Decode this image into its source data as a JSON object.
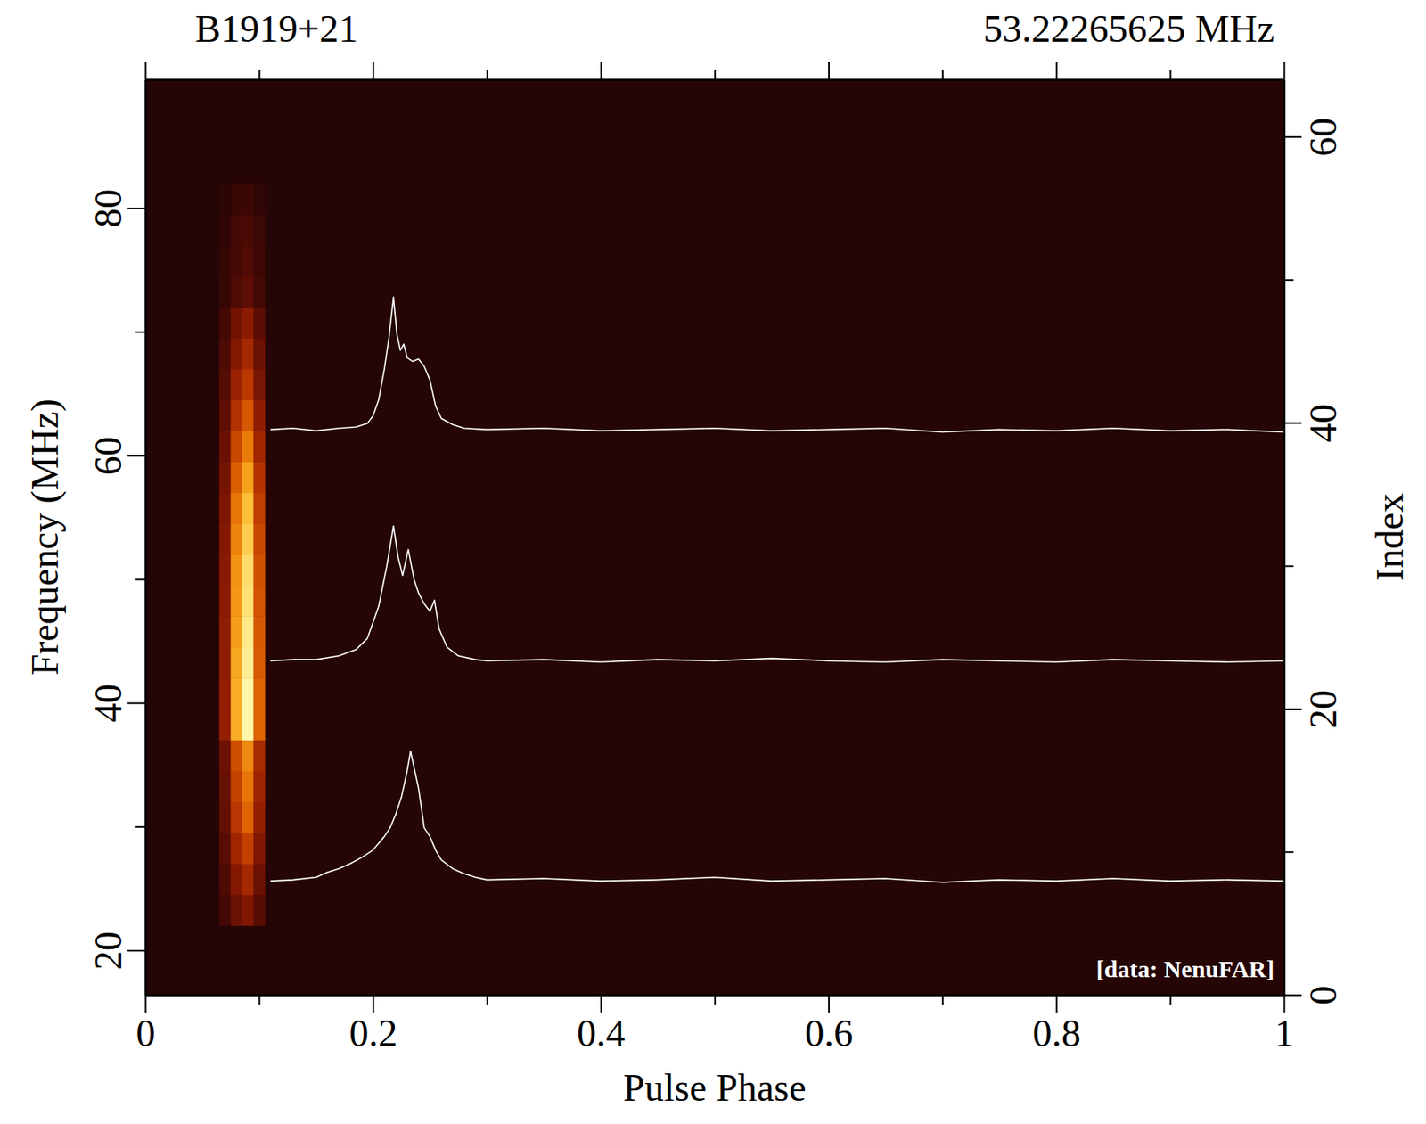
{
  "chart_data": {
    "type": "heatmap",
    "title": "B1919+21",
    "subtitle": "53.22265625 MHz",
    "x_label": "Pulse Phase",
    "y_label": "Frequency (MHz)",
    "y2_label": "Index",
    "annotation": "[data: NenuFAR]",
    "xlim": [
      0,
      1
    ],
    "xticks": [
      0,
      0.2,
      0.4,
      0.6,
      0.8,
      1
    ],
    "xticks_minor": [
      0.1,
      0.3,
      0.5,
      0.7,
      0.9
    ],
    "ylim": [
      16.4,
      90.4
    ],
    "yticks": [
      20,
      40,
      60,
      80
    ],
    "yticks_minor": [
      30,
      50,
      70
    ],
    "y2lim": [
      0,
      64
    ],
    "y2ticks": [
      0,
      20,
      40,
      60
    ],
    "y2ticks_minor": [
      10,
      30,
      50
    ],
    "cells": {
      "x_edges": [
        0.065,
        0.075,
        0.085,
        0.095,
        0.105
      ],
      "y_edges": [
        22,
        24.5,
        27,
        29.5,
        32,
        34.5,
        37,
        39.5,
        42,
        44.5,
        47,
        49.5,
        52,
        54.5,
        57,
        59.5,
        62,
        64.5,
        67,
        69.5,
        72,
        74.5,
        77,
        79.5,
        82
      ],
      "zlim": [
        0,
        1
      ],
      "values": [
        [
          0.08,
          0.19,
          0.25,
          0.14
        ],
        [
          0.11,
          0.26,
          0.35,
          0.19
        ],
        [
          0.14,
          0.34,
          0.45,
          0.25
        ],
        [
          0.17,
          0.41,
          0.55,
          0.3
        ],
        [
          0.18,
          0.45,
          0.6,
          0.33
        ],
        [
          0.2,
          0.49,
          0.65,
          0.36
        ],
        [
          0.3,
          0.75,
          1.0,
          0.55
        ],
        [
          0.3,
          0.75,
          1.0,
          0.55
        ],
        [
          0.29,
          0.73,
          0.97,
          0.53
        ],
        [
          0.29,
          0.71,
          0.95,
          0.52
        ],
        [
          0.28,
          0.69,
          0.92,
          0.51
        ],
        [
          0.27,
          0.68,
          0.9,
          0.5
        ],
        [
          0.26,
          0.64,
          0.85,
          0.47
        ],
        [
          0.24,
          0.6,
          0.8,
          0.44
        ],
        [
          0.22,
          0.54,
          0.72,
          0.4
        ],
        [
          0.19,
          0.47,
          0.62,
          0.34
        ],
        [
          0.16,
          0.39,
          0.52,
          0.29
        ],
        [
          0.13,
          0.32,
          0.42,
          0.23
        ],
        [
          0.11,
          0.26,
          0.35,
          0.19
        ],
        [
          0.08,
          0.21,
          0.28,
          0.15
        ],
        [
          0.05,
          0.11,
          0.15,
          0.08
        ],
        [
          0.04,
          0.09,
          0.12,
          0.07
        ],
        [
          0.03,
          0.08,
          0.1,
          0.06
        ],
        [
          0.02,
          0.05,
          0.06,
          0.03
        ]
      ]
    },
    "series": [
      {
        "type": "line",
        "color": "#ffffff",
        "x": [
          0.11,
          0.13,
          0.15,
          0.16,
          0.17,
          0.18,
          0.19,
          0.2,
          0.21,
          0.215,
          0.22,
          0.225,
          0.23,
          0.233,
          0.236,
          0.24,
          0.245,
          0.25,
          0.255,
          0.26,
          0.27,
          0.28,
          0.29,
          0.3,
          0.35,
          0.4,
          0.45,
          0.5,
          0.55,
          0.6,
          0.65,
          0.7,
          0.75,
          0.8,
          0.85,
          0.9,
          0.95,
          1.0
        ],
        "values": [
          25.6,
          25.7,
          25.9,
          26.3,
          26.6,
          27.0,
          27.5,
          28.1,
          29.2,
          29.9,
          31.0,
          32.4,
          34.5,
          36.1,
          34.8,
          33.1,
          29.9,
          29.2,
          28.1,
          27.3,
          26.6,
          26.2,
          25.9,
          25.7,
          25.8,
          25.6,
          25.7,
          25.9,
          25.6,
          25.7,
          25.8,
          25.5,
          25.7,
          25.6,
          25.8,
          25.6,
          25.7,
          25.6
        ]
      },
      {
        "type": "line",
        "color": "#ffffff",
        "x": [
          0.11,
          0.13,
          0.15,
          0.17,
          0.185,
          0.195,
          0.205,
          0.212,
          0.218,
          0.222,
          0.226,
          0.231,
          0.236,
          0.24,
          0.245,
          0.25,
          0.254,
          0.258,
          0.265,
          0.275,
          0.29,
          0.3,
          0.35,
          0.4,
          0.45,
          0.5,
          0.55,
          0.6,
          0.65,
          0.7,
          0.75,
          0.8,
          0.85,
          0.9,
          0.95,
          1.0
        ],
        "values": [
          43.4,
          43.5,
          43.5,
          43.8,
          44.3,
          45.2,
          47.8,
          51.0,
          54.3,
          51.8,
          50.3,
          52.4,
          50.0,
          48.9,
          48.0,
          47.4,
          48.3,
          46.0,
          44.5,
          43.8,
          43.5,
          43.4,
          43.5,
          43.3,
          43.5,
          43.4,
          43.6,
          43.4,
          43.3,
          43.5,
          43.4,
          43.3,
          43.5,
          43.4,
          43.3,
          43.4
        ]
      },
      {
        "type": "line",
        "color": "#ffffff",
        "x": [
          0.11,
          0.13,
          0.15,
          0.17,
          0.185,
          0.195,
          0.2,
          0.205,
          0.21,
          0.214,
          0.218,
          0.221,
          0.224,
          0.227,
          0.23,
          0.235,
          0.24,
          0.245,
          0.25,
          0.255,
          0.26,
          0.27,
          0.28,
          0.3,
          0.35,
          0.4,
          0.45,
          0.5,
          0.55,
          0.6,
          0.65,
          0.7,
          0.75,
          0.8,
          0.85,
          0.9,
          0.95,
          1.0
        ],
        "values": [
          62.1,
          62.2,
          62.0,
          62.2,
          62.3,
          62.6,
          63.2,
          64.5,
          67.0,
          69.5,
          72.8,
          69.8,
          68.5,
          69.0,
          67.9,
          67.6,
          67.8,
          67.2,
          66.1,
          64.0,
          63.0,
          62.5,
          62.2,
          62.1,
          62.2,
          62.0,
          62.1,
          62.2,
          62.0,
          62.1,
          62.2,
          61.9,
          62.1,
          62.0,
          62.2,
          62.0,
          62.1,
          61.9
        ]
      }
    ]
  }
}
